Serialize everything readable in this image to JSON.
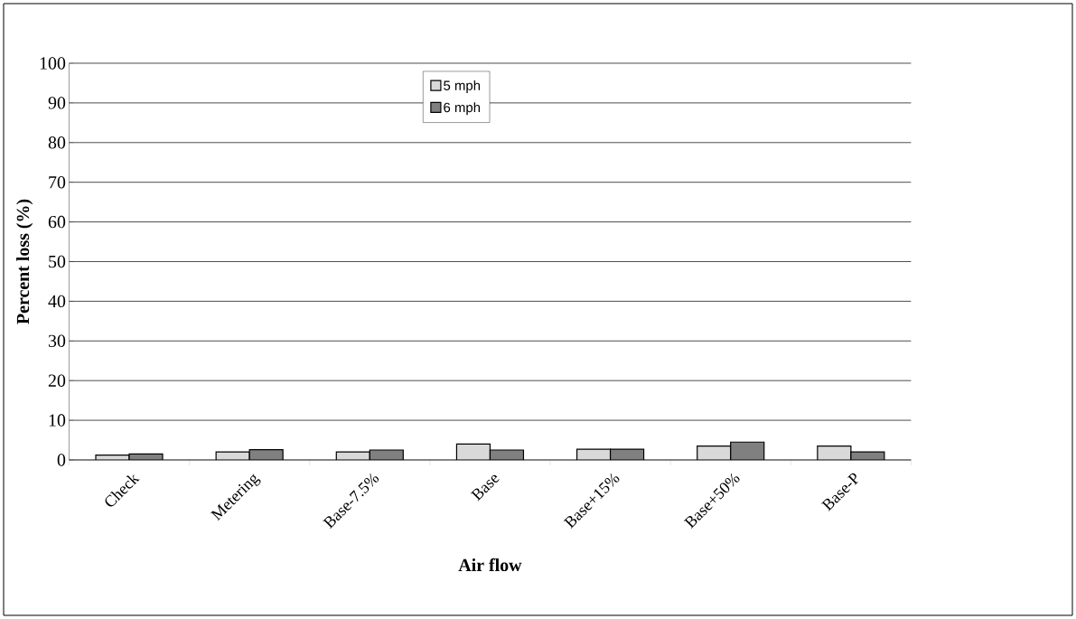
{
  "chart_data": {
    "type": "bar",
    "xlabel": "Air flow",
    "ylabel": "Percent loss (%)",
    "categories": [
      "Check",
      "Metering",
      "Base-7.5%",
      "Base",
      "Base+15%",
      "Base+50%",
      "Base-P"
    ],
    "series": [
      {
        "name": "5 mph",
        "color": "#d9d9d9",
        "values": [
          1.2,
          2.0,
          2.0,
          4.0,
          2.7,
          3.5,
          3.5
        ]
      },
      {
        "name": "6 mph",
        "color": "#808080",
        "values": [
          1.5,
          2.6,
          2.5,
          2.5,
          2.7,
          4.5,
          2.0
        ]
      }
    ],
    "ylim": [
      0,
      100
    ],
    "yticks": [
      0,
      10,
      20,
      30,
      40,
      50,
      60,
      70,
      80,
      90,
      100
    ],
    "grid": "y",
    "legend": "top"
  }
}
